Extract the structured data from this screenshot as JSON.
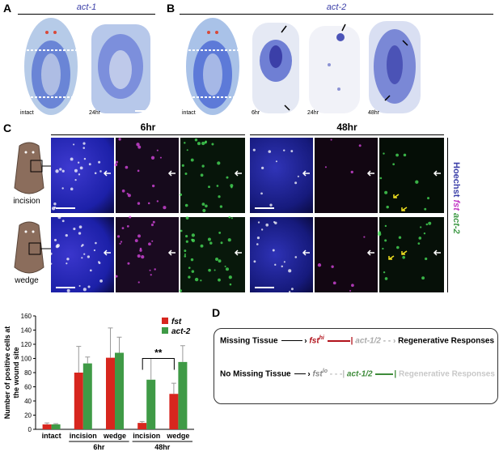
{
  "panels": {
    "A": {
      "label": "A",
      "title": "act-1",
      "tiles": [
        "intact",
        "24hr"
      ]
    },
    "B": {
      "label": "B",
      "title": "act-2",
      "tiles": [
        "intact",
        "6hr",
        "24hr",
        "48hr"
      ]
    },
    "C": {
      "label": "C",
      "times": [
        "6hr",
        "48hr"
      ],
      "rows": [
        "incision",
        "wedge"
      ],
      "stain": {
        "hoechst": "Hoechst",
        "fst": "fst",
        "act2": "act-2"
      }
    },
    "D": {
      "label": "D",
      "row1": {
        "condition": "Missing Tissue",
        "gene_hi": "fst",
        "sup": "hi",
        "gene": "act-1/2",
        "response": "Regenerative Responses"
      },
      "row2": {
        "condition": "No Missing Tissue",
        "gene_lo": "fst",
        "sup": "lo",
        "gene": "act-1/2",
        "response": "Regenerative Responses"
      }
    }
  },
  "colors": {
    "blue": "#3b3fa8",
    "red": "#d7261e",
    "green": "#3f9a46",
    "grey": "#aaaaaa",
    "darkred": "#b1121b",
    "darkgreen": "#3e8b3a"
  },
  "chart_data": {
    "type": "bar",
    "ylabel": "Number of positive cells at the wound site",
    "ylim": [
      0,
      160
    ],
    "yticks": [
      0,
      20,
      40,
      60,
      80,
      100,
      120,
      140,
      160
    ],
    "categories": [
      "intact",
      "incision",
      "wedge",
      "incision",
      "wedge"
    ],
    "groups": [
      {
        "label": "6hr",
        "span": [
          1,
          2
        ]
      },
      {
        "label": "48hr",
        "span": [
          3,
          4
        ]
      }
    ],
    "series": [
      {
        "name": "fst",
        "color": "#d7261e",
        "values": [
          7,
          80,
          101,
          9,
          50
        ],
        "errors": [
          2,
          37,
          42,
          2,
          15
        ]
      },
      {
        "name": "act-2",
        "color": "#3f9a46",
        "values": [
          7,
          93,
          108,
          70,
          95
        ],
        "errors": [
          1,
          9,
          22,
          30,
          23
        ]
      }
    ],
    "annotation": "**",
    "legend": "top-right"
  }
}
